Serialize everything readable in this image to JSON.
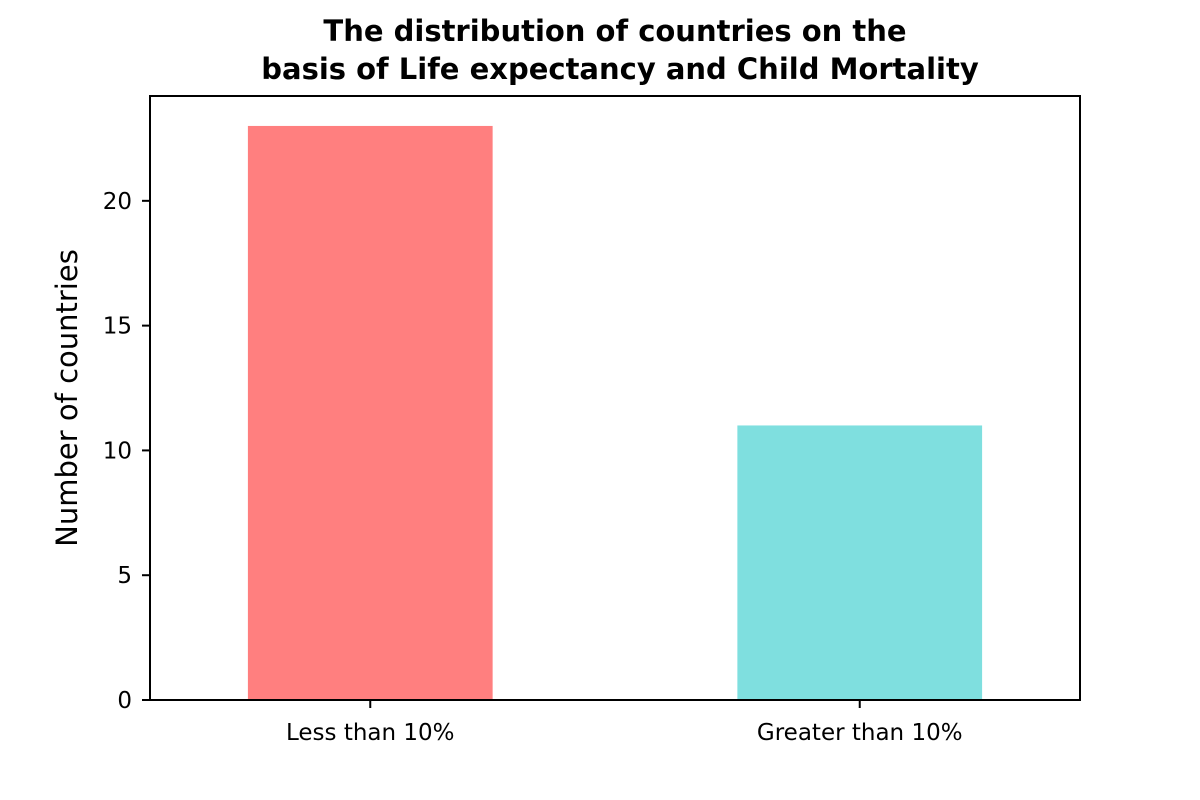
{
  "chart_data": {
    "type": "bar",
    "title": "The distribution of countries on the basis of Life expectancy and Child Mortality",
    "title_lines": [
      "The distribution of countries on the",
      "basis of Life expectancy and Child Mortality"
    ],
    "xlabel": "",
    "ylabel": "Number of countries",
    "categories": [
      "Less than 10%",
      "Greater than 10%"
    ],
    "values": [
      23,
      11
    ],
    "colors": [
      "#ff7f7f",
      "#7fdfdf"
    ],
    "ylim": [
      0,
      24.2
    ],
    "yticks": [
      0,
      5,
      10,
      15,
      20
    ],
    "grid": false,
    "legend": "none"
  }
}
